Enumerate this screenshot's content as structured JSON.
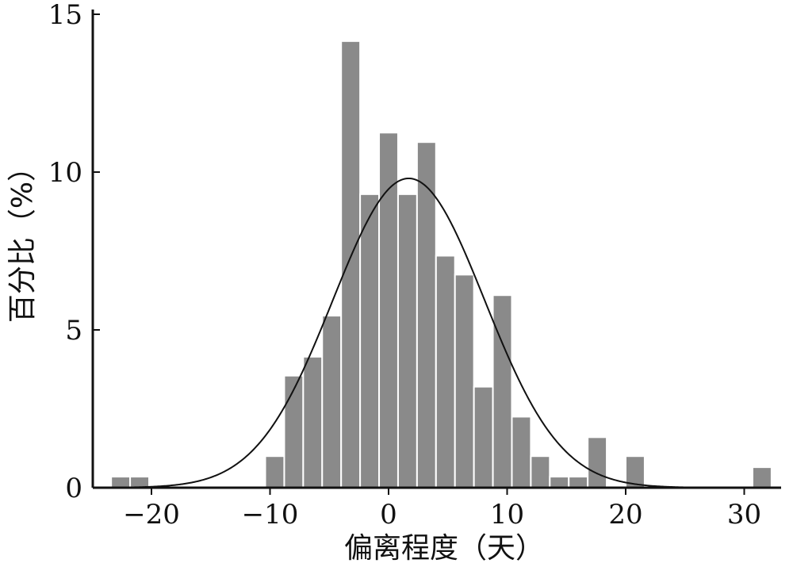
{
  "chart_data": {
    "type": "bar",
    "xlabel": "偏离程度（天）",
    "ylabel": "百分比（%）",
    "xlim": [
      -24,
      32
    ],
    "ylim": [
      0,
      15
    ],
    "xticks": [
      -20,
      -10,
      0,
      10,
      20,
      30
    ],
    "xtick_labels": [
      "−20",
      "−10",
      "0",
      "10",
      "20",
      "30"
    ],
    "yticks": [
      0,
      5,
      10,
      15
    ],
    "ytick_labels": [
      "0",
      "5",
      "10",
      "15"
    ],
    "grid": false,
    "bin_width": 1.6,
    "bins": [
      {
        "x0": -23.4,
        "value": 0.35
      },
      {
        "x0": -21.8,
        "value": 0.35
      },
      {
        "x0": -10.4,
        "value": 1.0
      },
      {
        "x0": -8.8,
        "value": 3.55
      },
      {
        "x0": -7.2,
        "value": 4.15
      },
      {
        "x0": -5.6,
        "value": 5.45
      },
      {
        "x0": -4.0,
        "value": 14.15
      },
      {
        "x0": -2.4,
        "value": 9.3
      },
      {
        "x0": -0.8,
        "value": 11.25
      },
      {
        "x0": 0.8,
        "value": 9.3
      },
      {
        "x0": 2.4,
        "value": 10.95
      },
      {
        "x0": 4.0,
        "value": 7.35
      },
      {
        "x0": 5.6,
        "value": 6.75
      },
      {
        "x0": 7.2,
        "value": 3.2
      },
      {
        "x0": 8.8,
        "value": 6.1
      },
      {
        "x0": 10.4,
        "value": 2.25
      },
      {
        "x0": 12.0,
        "value": 1.0
      },
      {
        "x0": 13.6,
        "value": 0.35
      },
      {
        "x0": 15.2,
        "value": 0.35
      },
      {
        "x0": 16.8,
        "value": 1.6
      },
      {
        "x0": 20.0,
        "value": 1.0
      },
      {
        "x0": 30.7,
        "value": 0.65
      }
    ],
    "fit_curve": {
      "type": "normal",
      "mean": 1.7,
      "std": 6.4,
      "peak": 9.8
    },
    "colors": {
      "bar": "#8a8a8a",
      "bar_edge": "#ffffff",
      "curve": "#111111",
      "axis": "#111111"
    }
  }
}
